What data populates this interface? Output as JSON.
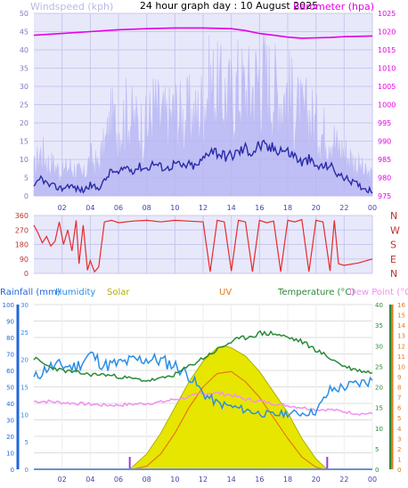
{
  "page": {
    "title": "24 hour graph day : 10 August 2025"
  },
  "colors": {
    "background": "#ffffff",
    "plot_bg": "#e8e8fb",
    "grid": "#c8c8ee",
    "wind_speed": "#2a2aa8",
    "wind_gust": "#b8b8f4",
    "barometer": "#e600e6",
    "wind_dir": "#e62a2a",
    "rain": "#2266dd",
    "humidity": "#2a8ee6",
    "solar": "#e6e600",
    "solar_edge": "#b0b000",
    "uv": "#e6781a",
    "temperature": "#2a8a3a",
    "dew_point": "#f090f0",
    "sun_marker": "#9a3adb"
  },
  "chart_data": [
    {
      "type": "line",
      "name": "wind-barometer",
      "labels": {
        "left": "Windspeed (kph)",
        "right": "Barometer (hpa)"
      },
      "x_ticks": [
        "02",
        "04",
        "06",
        "08",
        "10",
        "12",
        "14",
        "16",
        "18",
        "20",
        "22",
        "00"
      ],
      "x_hours": [
        2,
        4,
        6,
        8,
        10,
        12,
        14,
        16,
        18,
        20,
        22,
        24
      ],
      "left_axis": {
        "range": [
          0,
          50
        ],
        "ticks": [
          0,
          5,
          10,
          15,
          20,
          25,
          30,
          35,
          40,
          45,
          50
        ]
      },
      "right_axis": {
        "range": [
          975,
          1025
        ],
        "ticks": [
          975,
          980,
          985,
          990,
          995,
          1000,
          1005,
          1010,
          1015,
          1020,
          1025
        ]
      },
      "series": [
        {
          "name": "Windspeed (kph)",
          "axis": "left",
          "x": [
            0,
            0.5,
            1,
            1.5,
            2,
            2.5,
            3,
            3.5,
            4,
            4.5,
            5,
            5.5,
            6,
            6.5,
            7,
            7.5,
            8,
            8.5,
            9,
            9.5,
            10,
            10.5,
            11,
            11.5,
            12,
            12.5,
            13,
            13.5,
            14,
            14.5,
            15,
            15.5,
            16,
            16.5,
            17,
            17.5,
            18,
            18.5,
            19,
            19.5,
            20,
            20.5,
            21,
            21.5,
            22,
            22.5,
            23,
            23.5,
            24
          ],
          "y": [
            2,
            5,
            3,
            2.5,
            2,
            3,
            2,
            1.5,
            3,
            2,
            4,
            7,
            6,
            8,
            7,
            8,
            7.5,
            9,
            8,
            7.5,
            9,
            8,
            8.5,
            8,
            10,
            13,
            12,
            11,
            11,
            12,
            13,
            12,
            14,
            13,
            13,
            13,
            12,
            11,
            9,
            10,
            8,
            8,
            8.5,
            6,
            5,
            4,
            3,
            2,
            1.5
          ]
        },
        {
          "name": "Wind gust",
          "axis": "left",
          "x": [
            0,
            0.5,
            1,
            1.5,
            2,
            2.5,
            3,
            3.5,
            4,
            4.5,
            5,
            5.5,
            6,
            6.5,
            7,
            7.5,
            8,
            8.5,
            9,
            9.5,
            10,
            10.5,
            11,
            11.5,
            12,
            12.5,
            13,
            13.5,
            14,
            14.5,
            15,
            15.5,
            16,
            16.5,
            17,
            17.5,
            18,
            18.5,
            19,
            19.5,
            20,
            20.5,
            21,
            21.5,
            22,
            22.5,
            23,
            23.5,
            24
          ],
          "y": [
            7,
            12,
            9,
            8,
            6,
            8,
            7,
            5,
            10,
            8,
            13,
            20,
            18,
            22,
            20,
            19,
            18,
            24,
            21,
            20,
            23,
            21,
            22,
            21,
            25,
            30,
            28,
            27,
            26,
            30,
            28,
            29,
            33,
            31,
            29,
            27,
            28,
            24,
            21,
            22,
            19,
            17,
            18,
            13,
            12,
            10,
            8,
            6,
            5
          ]
        },
        {
          "name": "Barometer (hpa)",
          "axis": "right",
          "x": [
            0,
            2,
            4,
            6,
            8,
            10,
            12,
            14,
            15,
            16,
            17,
            18,
            19,
            20,
            21,
            22,
            23,
            24
          ],
          "y": [
            1019,
            1019.5,
            1020,
            1020.5,
            1020.8,
            1021,
            1021,
            1020.8,
            1020.3,
            1019.5,
            1019,
            1018.5,
            1018.2,
            1018.3,
            1018.4,
            1018.6,
            1018.7,
            1018.8
          ]
        }
      ]
    },
    {
      "type": "line",
      "name": "wind-direction",
      "y_ticks": [
        "360",
        "270",
        "180",
        "90",
        "0"
      ],
      "y_values": [
        360,
        270,
        180,
        90,
        0
      ],
      "right_labels": [
        "N",
        "W",
        "S",
        "E",
        "N"
      ],
      "y_range": [
        0,
        360
      ],
      "series": [
        {
          "name": "Wind direction",
          "x": [
            0,
            0.3,
            0.6,
            0.9,
            1.2,
            1.5,
            1.8,
            2.1,
            2.4,
            2.7,
            3.0,
            3.2,
            3.5,
            3.8,
            4.0,
            4.3,
            4.6,
            5.0,
            5.5,
            6.0,
            7,
            8,
            9,
            10,
            11,
            12,
            12.5,
            13,
            13.5,
            14,
            14.5,
            15,
            15.5,
            16,
            16.5,
            17,
            17.5,
            18,
            18.5,
            19,
            19.5,
            20,
            20.5,
            21,
            21.3,
            21.6,
            22,
            23,
            24
          ],
          "y": [
            300,
            250,
            190,
            230,
            170,
            200,
            320,
            180,
            270,
            140,
            330,
            60,
            300,
            20,
            80,
            10,
            40,
            320,
            330,
            315,
            325,
            330,
            320,
            330,
            325,
            320,
            10,
            330,
            320,
            15,
            330,
            320,
            10,
            330,
            315,
            325,
            10,
            330,
            320,
            335,
            10,
            330,
            320,
            15,
            330,
            60,
            50,
            65,
            90
          ]
        }
      ]
    },
    {
      "type": "line",
      "name": "rain-humidity-solar-uv-temperature-dewpoint",
      "headers": [
        "Rainfall (mm)",
        "Humidity",
        "Solar",
        "UV",
        "Temperature (°C)",
        "Dew Point (°C)"
      ],
      "x_ticks": [
        "02",
        "04",
        "06",
        "08",
        "10",
        "12",
        "14",
        "16",
        "18",
        "20",
        "22",
        "00"
      ],
      "x_hours": [
        2,
        4,
        6,
        8,
        10,
        12,
        14,
        16,
        18,
        20,
        22,
        24
      ],
      "axes": {
        "rain_ticks": [
          0,
          10,
          20,
          30,
          40,
          50,
          60,
          70,
          80,
          90,
          100
        ],
        "humidity_ticks": [
          0,
          5,
          10,
          15,
          20,
          25,
          30
        ],
        "temperature_ticks": [
          0,
          5,
          10,
          15,
          20,
          25,
          30,
          35,
          40
        ],
        "uv_ticks": [
          0,
          1,
          2,
          3,
          4,
          5,
          6,
          7,
          8,
          9,
          10,
          11,
          12,
          13,
          14,
          15,
          16
        ]
      },
      "sun_markers": [
        6.8,
        20.8
      ],
      "series": [
        {
          "name": "Humidity",
          "axis_range": [
            0,
            100
          ],
          "x": [
            0,
            1,
            2,
            3,
            4,
            5,
            6,
            7,
            8,
            9,
            10,
            11,
            12,
            13,
            14,
            15,
            16,
            17,
            18,
            19,
            20,
            21,
            22,
            23,
            24
          ],
          "y": [
            55,
            62,
            63,
            62,
            70,
            63,
            64,
            66,
            67,
            66,
            63,
            57,
            46,
            40,
            38,
            36,
            34,
            33,
            34,
            34,
            35,
            48,
            50,
            52,
            54
          ]
        },
        {
          "name": "Temperature (°C)",
          "axis_range": [
            0,
            40
          ],
          "x": [
            0,
            1,
            2,
            3,
            4,
            5,
            6,
            7,
            8,
            9,
            10,
            11,
            12,
            13,
            14,
            15,
            16,
            17,
            18,
            19,
            20,
            21,
            22,
            23,
            24
          ],
          "y": [
            27,
            25,
            24,
            23.5,
            23,
            23,
            22.5,
            22,
            21.5,
            22,
            23,
            25,
            27,
            29,
            31,
            32,
            33,
            33,
            32,
            31,
            29,
            27,
            25,
            24,
            23.5
          ]
        },
        {
          "name": "Dew Point (°C)",
          "axis_range": [
            0,
            40
          ],
          "x": [
            0,
            1,
            2,
            3,
            4,
            5,
            6,
            7,
            8,
            9,
            10,
            11,
            12,
            13,
            14,
            15,
            16,
            17,
            18,
            19,
            20,
            21,
            22,
            23,
            24
          ],
          "y": [
            16.5,
            16.5,
            16.2,
            16,
            15.8,
            15.6,
            15.6,
            15.8,
            16,
            16.3,
            17,
            17.5,
            18.5,
            18.5,
            18,
            17,
            16.5,
            16,
            15.5,
            15,
            14.5,
            14.5,
            14,
            13.5,
            13.5
          ]
        },
        {
          "name": "Solar",
          "axis_range": [
            0,
            16
          ],
          "x": [
            6.8,
            8,
            9,
            10,
            11,
            12,
            13,
            13.5,
            14,
            15,
            16,
            17,
            18,
            19,
            20,
            20.8
          ],
          "y": [
            0,
            1.5,
            3.5,
            6,
            8.5,
            10.5,
            11.8,
            12,
            11.8,
            11,
            9.5,
            7.5,
            5.5,
            3,
            1,
            0
          ]
        },
        {
          "name": "UV",
          "axis_range": [
            0,
            16
          ],
          "x": [
            7,
            8,
            9,
            10,
            11,
            12,
            13,
            14,
            15,
            16,
            17,
            18,
            19,
            20,
            20.6
          ],
          "y": [
            0,
            0.3,
            1.5,
            3.5,
            6,
            8,
            9.3,
            9.5,
            8.5,
            7,
            5,
            3,
            1.2,
            0.2,
            0
          ]
        },
        {
          "name": "Rainfall (mm)",
          "axis_range": [
            0,
            100
          ],
          "x": [
            0,
            24
          ],
          "y": [
            0,
            0
          ]
        }
      ]
    }
  ]
}
